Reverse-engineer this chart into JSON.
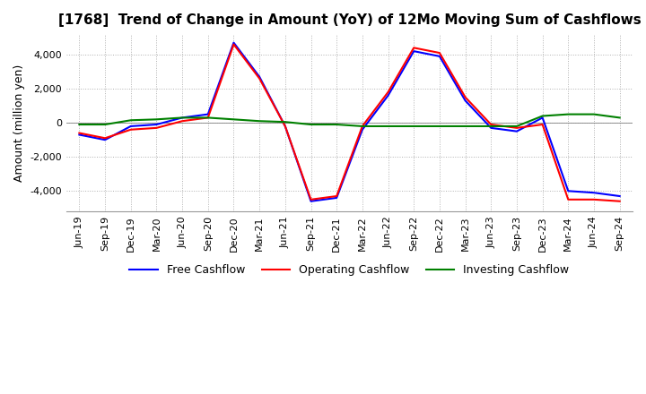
{
  "title": "[1768]  Trend of Change in Amount (YoY) of 12Mo Moving Sum of Cashflows",
  "ylabel": "Amount (million yen)",
  "ylim": [
    -5200,
    5200
  ],
  "yticks": [
    -4000,
    -2000,
    0,
    2000,
    4000
  ],
  "x_labels": [
    "Jun-19",
    "Sep-19",
    "Dec-19",
    "Mar-20",
    "Jun-20",
    "Sep-20",
    "Dec-20",
    "Mar-21",
    "Jun-21",
    "Sep-21",
    "Dec-21",
    "Mar-22",
    "Jun-22",
    "Sep-22",
    "Dec-22",
    "Mar-23",
    "Jun-23",
    "Sep-23",
    "Dec-23",
    "Mar-24",
    "Jun-24",
    "Sep-24"
  ],
  "operating": [
    -600,
    -900,
    -400,
    -300,
    100,
    300,
    4600,
    2600,
    -200,
    -4500,
    -4300,
    -200,
    1800,
    4400,
    4100,
    1500,
    -100,
    -300,
    -100,
    -4500,
    -4500,
    -4600
  ],
  "investing": [
    -100,
    -100,
    150,
    200,
    300,
    300,
    200,
    100,
    50,
    -100,
    -100,
    -200,
    -200,
    -200,
    -200,
    -200,
    -200,
    -200,
    400,
    500,
    500,
    300
  ],
  "free": [
    -700,
    -1000,
    -200,
    -100,
    300,
    500,
    4700,
    2700,
    -200,
    -4600,
    -4400,
    -400,
    1600,
    4200,
    3900,
    1300,
    -300,
    -500,
    300,
    -4000,
    -4100,
    -4300
  ],
  "operating_color": "#ff0000",
  "investing_color": "#008000",
  "free_color": "#0000ff",
  "bg_color": "#ffffff",
  "plot_bg_color": "#ffffff",
  "grid_color": "#b0b0b0",
  "title_fontsize": 11,
  "label_fontsize": 9,
  "tick_fontsize": 8
}
